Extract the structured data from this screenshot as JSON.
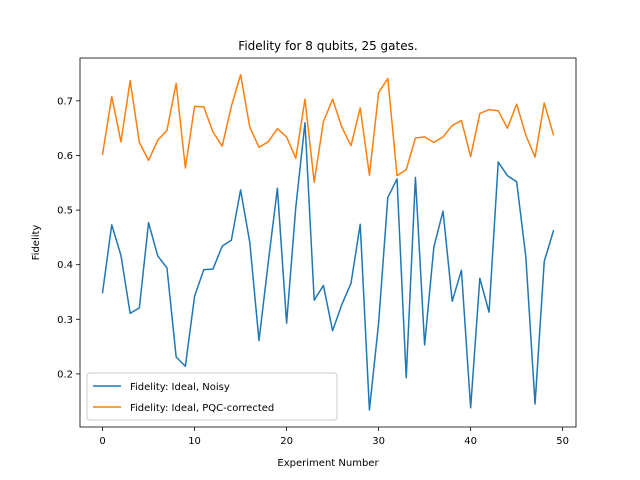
{
  "chart_data": {
    "type": "line",
    "title": "Fidelity for 8 qubits, 25 gates.",
    "xlabel": "Experiment Number",
    "ylabel": "Fidelity",
    "xlim": [
      -2.45,
      51.45
    ],
    "ylim": [
      0.1028,
      0.7785
    ],
    "xticks": [
      0,
      10,
      20,
      30,
      40,
      50
    ],
    "yticks": [
      0.2,
      0.3,
      0.4,
      0.5,
      0.6,
      0.7
    ],
    "xtick_labels": [
      "0",
      "10",
      "20",
      "30",
      "40",
      "50"
    ],
    "ytick_labels": [
      "0.2",
      "0.3",
      "0.4",
      "0.5",
      "0.6",
      "0.7"
    ],
    "grid": false,
    "legend_position": "lower-left",
    "x": [
      0,
      1,
      2,
      3,
      4,
      5,
      6,
      7,
      8,
      9,
      10,
      11,
      12,
      13,
      14,
      15,
      16,
      17,
      18,
      19,
      20,
      21,
      22,
      23,
      24,
      25,
      26,
      27,
      28,
      29,
      30,
      31,
      32,
      33,
      34,
      35,
      36,
      37,
      38,
      39,
      40,
      41,
      42,
      43,
      44,
      45,
      46,
      47,
      48,
      49
    ],
    "series": [
      {
        "name": "Fidelity: Ideal, Noisy",
        "color": "#1f77b4",
        "values": [
          0.349,
          0.473,
          0.417,
          0.311,
          0.321,
          0.477,
          0.416,
          0.394,
          0.231,
          0.214,
          0.342,
          0.391,
          0.392,
          0.434,
          0.445,
          0.537,
          0.441,
          0.261,
          0.403,
          0.54,
          0.293,
          0.505,
          0.66,
          0.335,
          0.362,
          0.279,
          0.327,
          0.366,
          0.474,
          0.134,
          0.293,
          0.523,
          0.557,
          0.193,
          0.56,
          0.253,
          0.432,
          0.498,
          0.333,
          0.39,
          0.138,
          0.375,
          0.313,
          0.588,
          0.563,
          0.552,
          0.414,
          0.145,
          0.406,
          0.462
        ]
      },
      {
        "name": "Fidelity: Ideal, PQC-corrected",
        "color": "#ff7f0e",
        "values": [
          0.602,
          0.708,
          0.625,
          0.737,
          0.624,
          0.591,
          0.628,
          0.646,
          0.732,
          0.577,
          0.69,
          0.689,
          0.643,
          0.617,
          0.69,
          0.748,
          0.652,
          0.615,
          0.625,
          0.649,
          0.634,
          0.595,
          0.703,
          0.551,
          0.662,
          0.703,
          0.652,
          0.618,
          0.687,
          0.564,
          0.715,
          0.741,
          0.563,
          0.574,
          0.632,
          0.634,
          0.624,
          0.634,
          0.655,
          0.664,
          0.598,
          0.677,
          0.684,
          0.682,
          0.65,
          0.694,
          0.637,
          0.597,
          0.696,
          0.638
        ]
      }
    ]
  }
}
